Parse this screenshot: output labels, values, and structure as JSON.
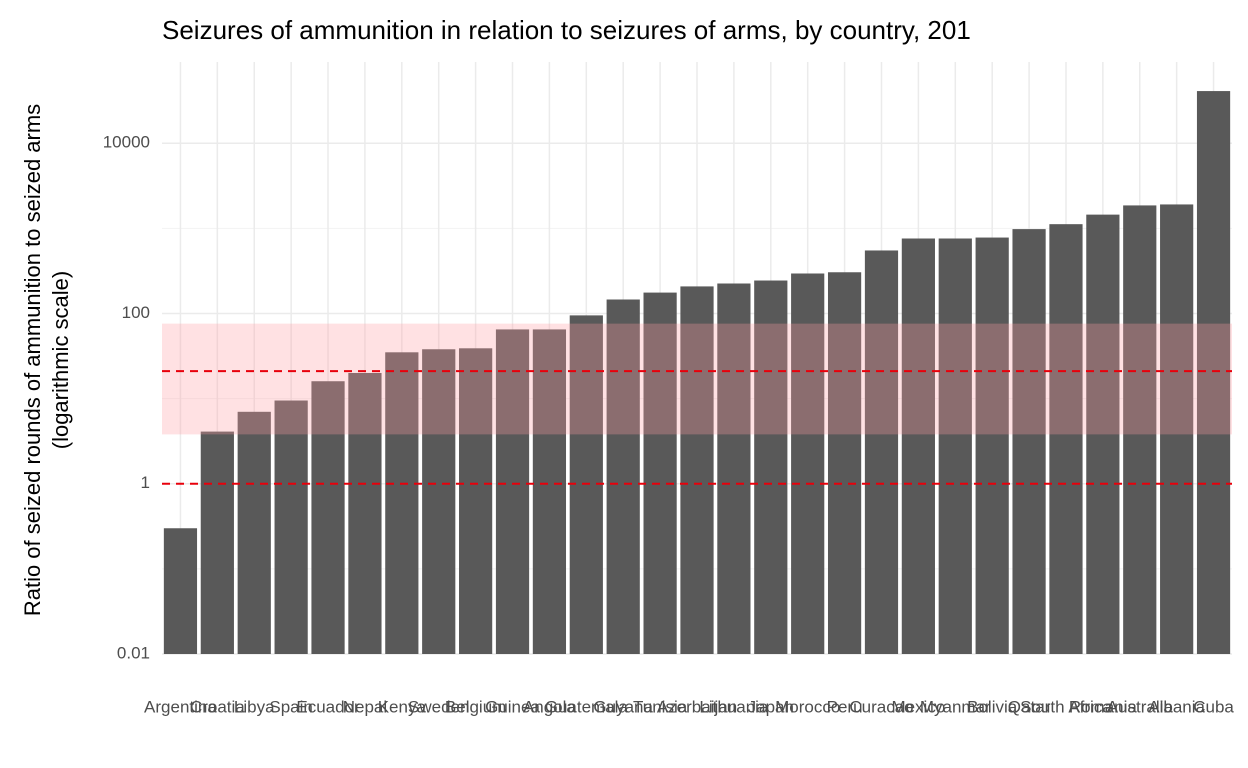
{
  "chart_data": {
    "type": "bar",
    "title": "Seizures of ammunition in relation to seizures of arms, by country, 201",
    "y_label": [
      "Ratio of seized rounds of ammunition to seized arms",
      "(logarithmic scale)"
    ],
    "categories": [
      "Argentina",
      "Croatia",
      "Libya",
      "Spain",
      "Ecuador",
      "Nepal",
      "Kenya",
      "Sweden",
      "Belgium",
      "Guinea",
      "Angola",
      "Guatemala",
      "Guyana",
      "Tunisia",
      "Azerbaijan",
      "Lithuania",
      "Japan",
      "Morocco",
      "Peru",
      "Curacao",
      "Mexico",
      "Myanmar",
      "Bolivia",
      "Qatar",
      "South Africa",
      "Romania",
      "Australia",
      "Albania",
      "Cuba"
    ],
    "values": [
      0.3,
      4.1,
      7,
      9.5,
      16,
      20,
      35,
      38,
      39,
      65,
      65,
      95,
      146,
      176,
      208,
      225,
      244,
      295,
      305,
      550,
      760,
      760,
      780,
      980,
      1120,
      1450,
      1860,
      1910,
      41000
    ],
    "color": "#595959",
    "log_scale": true,
    "ylim": [
      0.01,
      90000
    ],
    "yticks": [
      0.01,
      1,
      100,
      10000
    ],
    "minor_yticks": [
      0.1,
      10,
      1000
    ],
    "grid": true,
    "reference_lines": [
      1,
      21
    ],
    "reference_color": "#e8000b",
    "band": [
      3.8,
      76
    ],
    "band_color": "#ff9aa2"
  }
}
